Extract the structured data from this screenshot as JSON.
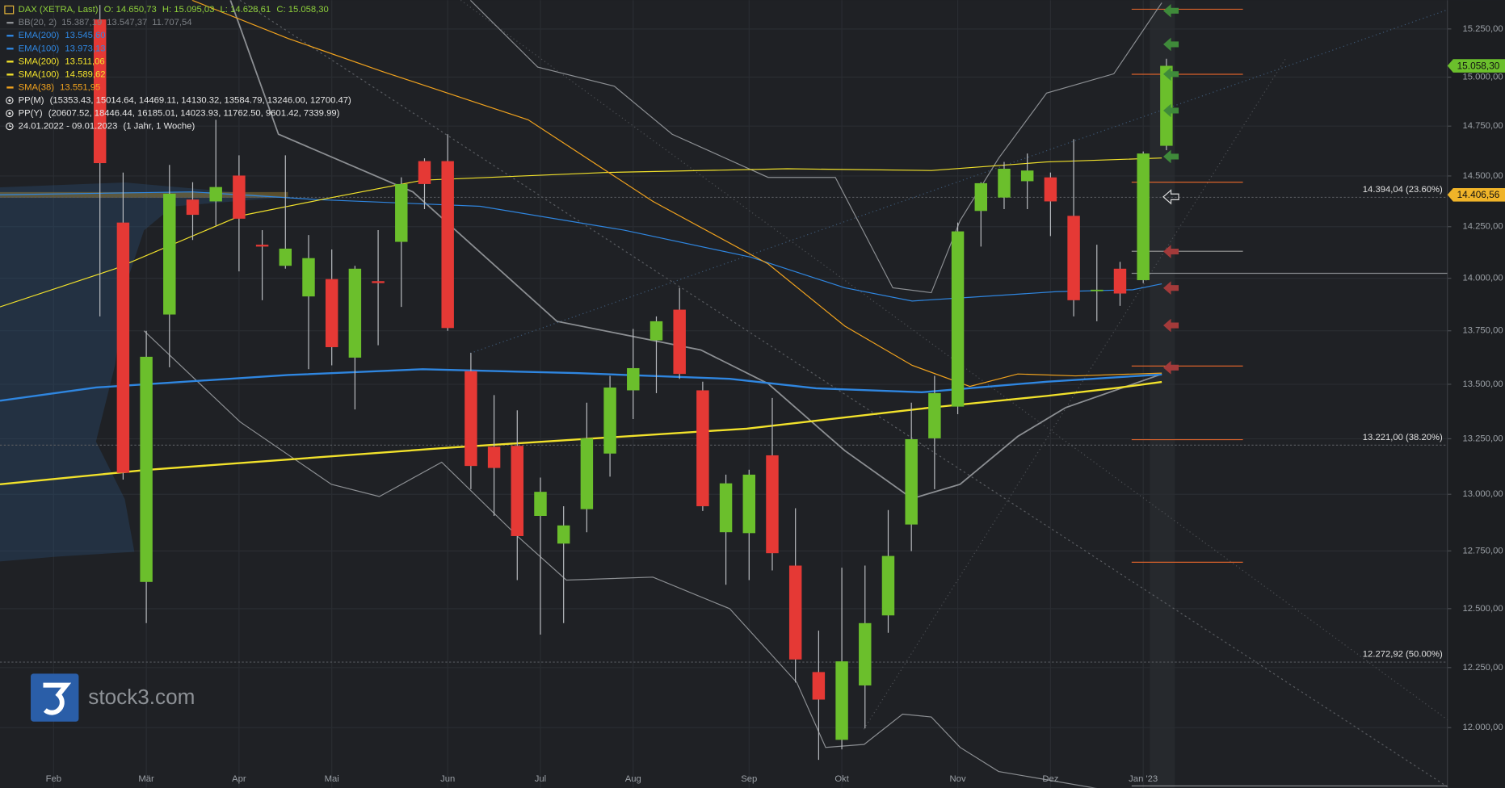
{
  "chart_data": {
    "type": "candlestick",
    "title": "DAX (XETRA, Last)",
    "header": [
      "O: 14.650,73",
      "H: 15.095,03",
      "L: 14.628,61",
      "C: 15.058,30"
    ],
    "up_color": "#6bbf2c",
    "down_color": "#e53935",
    "candles": {
      "open": [
        15300,
        14270,
        12615,
        13827,
        14383,
        14374,
        14502,
        14162,
        14060,
        13913,
        13996,
        13624,
        13986,
        14176,
        14574,
        14574,
        13561,
        13214,
        13218,
        12904,
        12782,
        12934,
        13183,
        13472,
        13705,
        13850,
        13472,
        12832,
        12828,
        13175,
        12686,
        12231,
        11950,
        12175,
        12471,
        12866,
        13252,
        13397,
        14327,
        14393,
        14474,
        14493,
        14303,
        13940,
        14046,
        13991,
        14650.73
      ],
      "high": [
        15376,
        14517,
        13750,
        14555,
        14469,
        14782,
        14603,
        14233,
        14603,
        14209,
        14139,
        14060,
        14233,
        14493,
        14588,
        14709,
        13646,
        13450,
        13380,
        13075,
        12947,
        13415,
        13539,
        13759,
        13818,
        13954,
        13512,
        13088,
        13110,
        13437,
        12938,
        12406,
        12677,
        12686,
        12930,
        13415,
        13539,
        14270,
        14469,
        14570,
        14612,
        14517,
        14684,
        14162,
        14079,
        14622,
        15095.03
      ],
      "low": [
        13818,
        13066,
        12438,
        13579,
        14185,
        14256,
        14033,
        13895,
        14046,
        13570,
        13588,
        13384,
        13682,
        13863,
        14336,
        13750,
        13023,
        12904,
        12623,
        12389,
        12438,
        12832,
        13079,
        13340,
        13459,
        13525,
        12926,
        12603,
        12623,
        12665,
        12187,
        11868,
        11911,
        11997,
        12397,
        12749,
        13023,
        13362,
        14153,
        14336,
        14336,
        14204,
        13818,
        13795,
        13868,
        13977,
        14628.61
      ],
      "close": [
        14564,
        13096,
        13628,
        14412,
        14308,
        14445,
        14289,
        14153,
        14143,
        14097,
        13673,
        14046,
        13977,
        14460,
        14460,
        13763,
        13127,
        13118,
        12815,
        13011,
        12862,
        13252,
        13485,
        13575,
        13795,
        13548,
        12947,
        13049,
        13088,
        12740,
        12284,
        12116,
        12276,
        12438,
        12728,
        13248,
        13459,
        14227,
        14464,
        14536,
        14527,
        14374,
        13895,
        13945,
        13927,
        14612,
        15058.3
      ]
    },
    "xlim": [
      -4.31,
      58.12
    ],
    "xticks": [
      {
        "value": -2,
        "label": "Feb"
      },
      {
        "value": 2,
        "label": "Mär"
      },
      {
        "value": 6,
        "label": "Apr"
      },
      {
        "value": 10,
        "label": "Mai"
      },
      {
        "value": 15,
        "label": "Jun"
      },
      {
        "value": 19,
        "label": "Jul"
      },
      {
        "value": 23,
        "label": "Aug"
      },
      {
        "value": 28,
        "label": "Sep"
      },
      {
        "value": 32,
        "label": "Okt"
      },
      {
        "value": 37,
        "label": "Nov"
      },
      {
        "value": 41,
        "label": "Dez"
      },
      {
        "value": 45,
        "label": "Jan '23"
      }
    ],
    "ylim": [
      11755,
      15401
    ],
    "log_scale": true,
    "grid": true,
    "yticks": [
      {
        "value": 12000,
        "label": "12.000,00"
      },
      {
        "value": 12250,
        "label": "12.250,00"
      },
      {
        "value": 12500,
        "label": "12.500,00"
      },
      {
        "value": 12750,
        "label": "12.750,00"
      },
      {
        "value": 13000,
        "label": "13.000,00"
      },
      {
        "value": 13250,
        "label": "13.250,00"
      },
      {
        "value": 13500,
        "label": "13.500,00"
      },
      {
        "value": 13750,
        "label": "13.750,00"
      },
      {
        "value": 14000,
        "label": "14.000,00"
      },
      {
        "value": 14250,
        "label": "14.250,00"
      },
      {
        "value": 14500,
        "label": "14.500,00"
      },
      {
        "value": 14750,
        "label": "14.750,00"
      },
      {
        "value": 15000,
        "label": "15.000,00"
      },
      {
        "value": 15250,
        "label": "15.250,00"
      }
    ],
    "bands": {
      "name": "BB(20, 2)",
      "color": "#8c8f93",
      "labels": [
        "15.387,19",
        "13.547,37",
        "11.707,54"
      ],
      "upper": {
        "x": [
          15.98,
          18.88,
          22.19,
          24.68,
          28.82,
          31.72,
          34.2,
          35.86,
          37.1,
          38.76,
          40.83,
          43.73,
          45.8
        ],
        "values": [
          15401,
          15052,
          14953,
          14709,
          14493,
          14493,
          13954,
          13931,
          14280,
          14588,
          14918,
          15017,
          15387.19
        ]
      },
      "middle": {
        "x": [
          5.63,
          7.7,
          13.5,
          19.71,
          25.92,
          28.82,
          32.13,
          35.03,
          37.1,
          39.59,
          41.66,
          45.8
        ],
        "values": [
          15401,
          14709,
          14421,
          13795,
          13660,
          13503,
          13196,
          12981,
          13045,
          13261,
          13393,
          13547.37
        ]
      },
      "lower": {
        "x": [
          1.9,
          6.05,
          9.98,
          12.05,
          14.74,
          18.05,
          20.12,
          23.85,
          27.16,
          30.06,
          31.3,
          32.96,
          34.62,
          35.86,
          37.1,
          38.76,
          45.8
        ],
        "values": [
          13750,
          13327,
          13045,
          12990,
          13144,
          12811,
          12623,
          12636,
          12500,
          12187,
          11919,
          11931,
          12056,
          12044,
          11919,
          11821,
          11707.54
        ]
      }
    },
    "lines": [
      {
        "name": "EMA(200)",
        "color": "#2f86e0",
        "width": 2,
        "last_label": "13.545,60",
        "x": [
          -4.31,
          -0.17,
          8.12,
          13.92,
          20.54,
          27.16,
          30.89,
          35.44,
          40.83,
          45.8
        ],
        "values": [
          13424,
          13485,
          13543,
          13570,
          13552,
          13525,
          13481,
          13463,
          13512,
          13545.6
        ]
      },
      {
        "name": "EMA(100)",
        "color": "#2f86e0",
        "width": 1,
        "last_label": "13.973,13",
        "x": [
          -4.31,
          3.98,
          9.36,
          16.4,
          22.61,
          28.07,
          32.13,
          35.03,
          37.52,
          41.24,
          44.55,
          45.8
        ],
        "values": [
          14407,
          14421,
          14383,
          14350,
          14233,
          14102,
          13954,
          13891,
          13909,
          13936,
          13945,
          13973.13
        ]
      },
      {
        "name": "SMA(200)",
        "color": "#f2e22b",
        "width": 2,
        "last_label": "13.511,06",
        "x": [
          -4.31,
          1.99,
          14.95,
          27.9,
          35.86,
          40.83,
          43.73,
          45.8
        ],
        "values": [
          13045,
          13109,
          13209,
          13296,
          13393,
          13446,
          13481,
          13511.06
        ]
      },
      {
        "name": "SMA(100)",
        "color": "#f2e22b",
        "width": 1,
        "last_label": "14.589,62",
        "x": [
          -4.31,
          0.66,
          6.05,
          9.77,
          13.92,
          21.78,
          29.65,
          35.86,
          40.83,
          45.8
        ],
        "values": [
          13863,
          14046,
          14303,
          14388,
          14479,
          14517,
          14536,
          14527,
          14570,
          14589.62
        ]
      },
      {
        "name": "SMA(38)",
        "color": "#f0a21e",
        "width": 1,
        "last_label": "13.551,95",
        "x": [
          3.98,
          8.12,
          12.26,
          18.47,
          23.85,
          28.82,
          32.13,
          35.03,
          37.52,
          39.59,
          42.07,
          45.8
        ],
        "values": [
          15401,
          15200,
          15026,
          14782,
          14374,
          14069,
          13772,
          13588,
          13490,
          13548,
          13539,
          13551.95
        ]
      }
    ],
    "levels": [
      {
        "value": 14394.04,
        "label": "14.394,04 (23.60%)"
      },
      {
        "value": 13221.0,
        "label": "13.221,00 (38.20%)"
      },
      {
        "value": 12272.92,
        "label": "12.272,92 (50.00%)"
      }
    ],
    "price_tags": [
      {
        "value": 15058.3,
        "label": "15.058,30",
        "color": "#6bbf2c"
      },
      {
        "value": 14406.56,
        "label": "14.406,56",
        "color": "#f0b429"
      }
    ],
    "pp_m": {
      "name": "PP(M)",
      "text": "(15353.43, 15014.64, 14469.11, 14130.32, 13584.79, 13246.00, 12700.47)",
      "levels": [
        15353.43,
        15014.64,
        14469.11,
        14130.32,
        13584.79,
        13246.0,
        12700.47
      ],
      "color": "#d9622b",
      "center_color": "#9a9a9a",
      "start": 44.5,
      "end": 49.3
    },
    "pp_y": {
      "name": "PP(Y)",
      "text": "(20607.52, 18446.44, 16185.01, 14023.93, 11762.50, 9601.42, 7339.99)",
      "levels": [
        20607.52,
        18446.44,
        16185.01,
        14023.93,
        11762.5,
        9601.42,
        7339.99
      ],
      "color": "#8a8d91",
      "start": 44.5
    },
    "date_range": "24.01.2022 - 09.01.2023",
    "period": "(1 Jahr, 1 Woche)"
  },
  "branding": {
    "logo": "stock3.com"
  }
}
